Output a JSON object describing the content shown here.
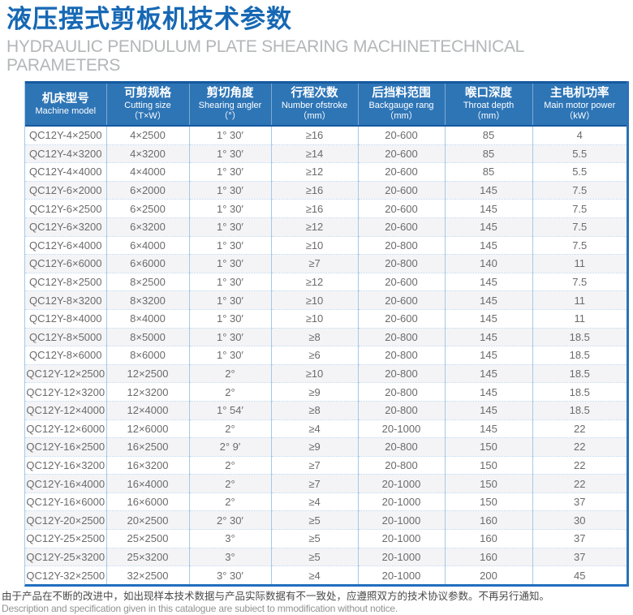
{
  "page": {
    "title_zh": "液压摆式剪板机技术参数",
    "title_en": "HYDRAULIC PENDULUM PLATE SHEARING MACHINETECHNICAL PARAMETERS"
  },
  "colors": {
    "title_blue": "#1668b4",
    "header_bg": "#2e75b6",
    "header_border_dark": "#155a9f",
    "grid_light_blue": "#a6c9e8",
    "row_alt_bg": "#f4f4f6",
    "outer_bottom_border": "#1f6fbe"
  },
  "table": {
    "header_keys": [
      "machine-model",
      "cutting-size",
      "shearing-angle",
      "stroke-number",
      "backgauge-range",
      "throat-depth",
      "main-motor-power"
    ],
    "headers": [
      {
        "zh": "机床型号",
        "en": "Machine model",
        "unit": ""
      },
      {
        "zh": "可剪规格",
        "en": "Cutting size",
        "unit": "（T×W）"
      },
      {
        "zh": "剪切角度",
        "en": "Shearing angler",
        "unit": "（°）"
      },
      {
        "zh": "行程次数",
        "en": "Number ofstroke",
        "unit": "（mm）"
      },
      {
        "zh": "后挡料范围",
        "en": "Backgauge rang",
        "unit": "（mm）"
      },
      {
        "zh": "喉口深度",
        "en": "Throat depth",
        "unit": "（mm）"
      },
      {
        "zh": "主电机功率",
        "en": "Main motor power",
        "unit": "（kW）"
      }
    ],
    "rows": [
      [
        "QC12Y-4×2500",
        "4×2500",
        "1° 30′",
        "≥16",
        "20-600",
        "85",
        "4"
      ],
      [
        "QC12Y-4×3200",
        "4×3200",
        "1° 30′",
        "≥14",
        "20-600",
        "85",
        "5.5"
      ],
      [
        "QC12Y-4×4000",
        "4×4000",
        "1° 30′",
        "≥12",
        "20-600",
        "85",
        "5.5"
      ],
      [
        "QC12Y-6×2000",
        "6×2000",
        "1° 30′",
        "≥16",
        "20-600",
        "145",
        "7.5"
      ],
      [
        "QC12Y-6×2500",
        "6×2500",
        "1° 30′",
        "≥16",
        "20-600",
        "145",
        "7.5"
      ],
      [
        "QC12Y-6×3200",
        "6×3200",
        "1° 30′",
        "≥12",
        "20-600",
        "145",
        "7.5"
      ],
      [
        "QC12Y-6×4000",
        "6×4000",
        "1° 30′",
        "≥10",
        "20-800",
        "145",
        "7.5"
      ],
      [
        "QC12Y-6×6000",
        "6×6000",
        "1° 30′",
        "≥7",
        "20-800",
        "140",
        "11"
      ],
      [
        "QC12Y-8×2500",
        "8×2500",
        "1° 30′",
        "≥12",
        "20-600",
        "145",
        "7.5"
      ],
      [
        "QC12Y-8×3200",
        "8×3200",
        "1° 30′",
        "≥10",
        "20-600",
        "145",
        "11"
      ],
      [
        "QC12Y-8×4000",
        "8×4000",
        "1° 30′",
        "≥10",
        "20-600",
        "145",
        "11"
      ],
      [
        "QC12Y-8×5000",
        "8×5000",
        "1° 30′",
        "≥8",
        "20-800",
        "145",
        "18.5"
      ],
      [
        "QC12Y-8×6000",
        "8×6000",
        "1° 30′",
        "≥6",
        "20-800",
        "145",
        "18.5"
      ],
      [
        "QC12Y-12×2500",
        "12×2500",
        "2°",
        "≥10",
        "20-800",
        "145",
        "18.5"
      ],
      [
        "QC12Y-12×3200",
        "12×3200",
        "2°",
        "≥9",
        "20-800",
        "145",
        "18.5"
      ],
      [
        "QC12Y-12×4000",
        "12×4000",
        "1° 54′",
        "≥8",
        "20-800",
        "145",
        "18.5"
      ],
      [
        "QC12Y-12×6000",
        "12×6000",
        "2°",
        "≥4",
        "20-1000",
        "145",
        "22"
      ],
      [
        "QC12Y-16×2500",
        "16×2500",
        "2° 9′",
        "≥9",
        "20-800",
        "150",
        "22"
      ],
      [
        "QC12Y-16×3200",
        "16×3200",
        "2°",
        "≥7",
        "20-800",
        "150",
        "22"
      ],
      [
        "QC12Y-16×4000",
        "16×4000",
        "2°",
        "≥7",
        "20-1000",
        "150",
        "22"
      ],
      [
        "QC12Y-16×6000",
        "16×6000",
        "2°",
        "≥4",
        "20-1000",
        "150",
        "37"
      ],
      [
        "QC12Y-20×2500",
        "20×2500",
        "2° 30′",
        "≥5",
        "20-1000",
        "160",
        "30"
      ],
      [
        "QC12Y-25×2500",
        "25×2500",
        "3°",
        "≥5",
        "20-1000",
        "160",
        "37"
      ],
      [
        "QC12Y-25×3200",
        "25×3200",
        "3°",
        "≥5",
        "20-1000",
        "160",
        "37"
      ],
      [
        "QC12Y-32×2500",
        "32×2500",
        "3° 30′",
        "≥4",
        "20-1000",
        "200",
        "45"
      ]
    ]
  },
  "footer": {
    "note_zh": "由于产品在不断的改进中，如出现样本技术数据与产品实际数据有不一致处，应遵照双方的技术协议参数。不再另行通知。",
    "note_en": "Description and specification given in this catalogue are subiect to mmodification without notice."
  }
}
